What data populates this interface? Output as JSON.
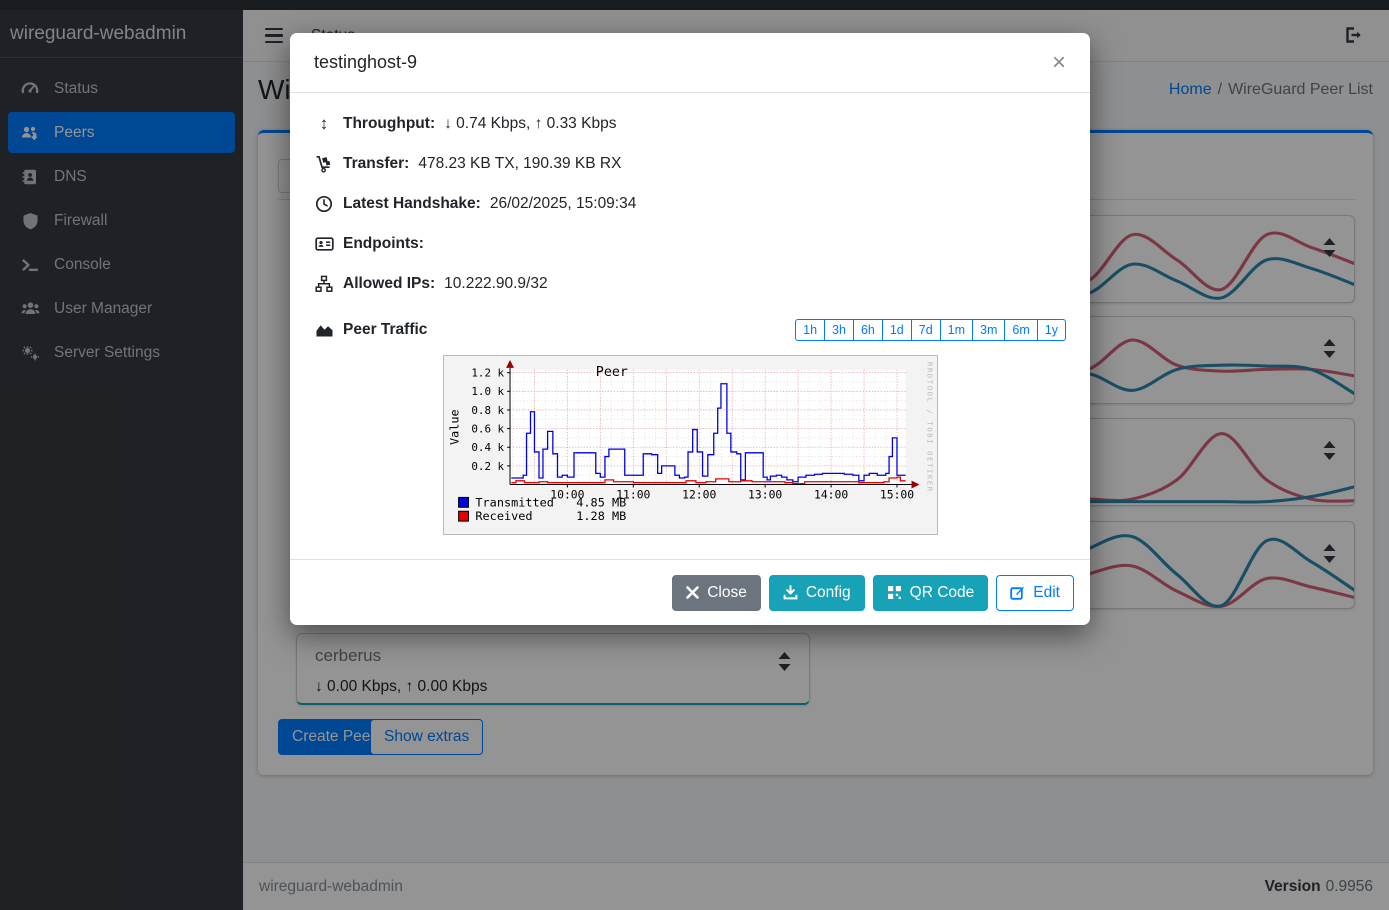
{
  "colors": {
    "primary": "#007bff",
    "teal": "#17a2b8",
    "gray": "#6c757d",
    "success_border": "#28a745",
    "spark_red": "#d25f75",
    "spark_blue": "#2d87ae"
  },
  "app": {
    "brand": "wireguard-webadmin"
  },
  "sidebar": {
    "items": [
      {
        "label": "Status",
        "icon": "gauge-icon",
        "active": false
      },
      {
        "label": "Peers",
        "icon": "users-gear-icon",
        "active": true
      },
      {
        "label": "DNS",
        "icon": "address-book-icon",
        "active": false
      },
      {
        "label": "Firewall",
        "icon": "shield-icon",
        "active": false
      },
      {
        "label": "Console",
        "icon": "terminal-icon",
        "active": false
      },
      {
        "label": "User Manager",
        "icon": "users-icon",
        "active": false
      },
      {
        "label": "Server Settings",
        "icon": "gears-icon",
        "active": false
      }
    ]
  },
  "navbar": {
    "menu_link": "Status"
  },
  "breadcrumb": {
    "home": "Home",
    "separator": "/",
    "current": "WireGuard Peer List"
  },
  "page": {
    "title": "WireGuard Peer List"
  },
  "peers": {
    "cerberus": {
      "name": "cerberus",
      "stats": "↓ 0.00 Kbps, ↑ 0.00 Kbps"
    },
    "create_button": "Create Peer",
    "extras_button": "Show extras"
  },
  "footer": {
    "version_label": "Version",
    "version": "0.9956"
  },
  "modal": {
    "title": "testinghost-9",
    "close_glyph": "×",
    "rows": [
      {
        "icon": "arrows-vertical-icon",
        "glyph": "↕",
        "label": "Throughput:",
        "value": "↓ 0.74 Kbps, ↑ 0.33 Kbps"
      },
      {
        "icon": "dolly-icon",
        "label": "Transfer:",
        "value": "478.23 KB TX, 190.39 KB RX"
      },
      {
        "icon": "clock-icon",
        "label": "Latest Handshake:",
        "value": "26/02/2025, 15:09:34"
      },
      {
        "icon": "address-card-icon",
        "label": "Endpoints:",
        "value": ""
      },
      {
        "icon": "sitemap-icon",
        "label": "Allowed IPs:",
        "value": "10.222.90.9/32"
      }
    ],
    "traffic": {
      "icon": "chart-area-icon",
      "label": "Peer Traffic",
      "ranges": [
        "1h",
        "3h",
        "6h",
        "1d",
        "7d",
        "1m",
        "3m",
        "6m",
        "1y"
      ]
    },
    "buttons": [
      {
        "label": "Close",
        "icon": "close-icon",
        "style": "gray"
      },
      {
        "label": "Config",
        "icon": "download-icon",
        "style": "teal"
      },
      {
        "label": "QR Code",
        "icon": "qrcode-icon",
        "style": "teal"
      },
      {
        "label": "Edit",
        "icon": "edit-icon",
        "style": "outline"
      }
    ]
  },
  "chart_data": {
    "type": "area-step",
    "title": "Peer",
    "ylabel": "Value",
    "x_ticks": [
      "10:00",
      "11:00",
      "12:00",
      "13:00",
      "14:00",
      "15:00"
    ],
    "x_tick_hours": [
      10,
      11,
      12,
      13,
      14,
      15
    ],
    "y_ticks": [
      "0.2 k",
      "0.4 k",
      "0.6 k",
      "0.8 k",
      "1.0 k",
      "1.2 k"
    ],
    "y_tick_values": [
      0.2,
      0.4,
      0.6,
      0.8,
      1.0,
      1.2
    ],
    "x_range_hours": [
      9.13,
      15.13
    ],
    "ylim": [
      0,
      1.23
    ],
    "grid": true,
    "legend_position": "bottom-left",
    "watermark": "RRDTOOL / TOBI OETIKER",
    "series": [
      {
        "name": "Transmitted",
        "color": "#0000e8",
        "total": "4.85 MB",
        "points": [
          [
            9.15,
            0.07
          ],
          [
            9.33,
            0.1
          ],
          [
            9.38,
            0.55
          ],
          [
            9.44,
            0.78
          ],
          [
            9.5,
            0.35
          ],
          [
            9.57,
            0.07
          ],
          [
            9.63,
            0.38
          ],
          [
            9.7,
            0.57
          ],
          [
            9.78,
            0.33
          ],
          [
            9.85,
            0.08
          ],
          [
            9.92,
            0.1
          ],
          [
            10.0,
            0.08
          ],
          [
            10.1,
            0.34
          ],
          [
            10.37,
            0.34
          ],
          [
            10.43,
            0.12
          ],
          [
            10.5,
            0.08
          ],
          [
            10.57,
            0.3
          ],
          [
            10.63,
            0.38
          ],
          [
            10.8,
            0.38
          ],
          [
            10.87,
            0.1
          ],
          [
            11.1,
            0.1
          ],
          [
            11.15,
            0.33
          ],
          [
            11.28,
            0.32
          ],
          [
            11.37,
            0.12
          ],
          [
            11.43,
            0.2
          ],
          [
            11.57,
            0.2
          ],
          [
            11.63,
            0.1
          ],
          [
            11.7,
            0.07
          ],
          [
            11.78,
            0.08
          ],
          [
            11.83,
            0.35
          ],
          [
            11.9,
            0.59
          ],
          [
            11.97,
            0.35
          ],
          [
            12.05,
            0.09
          ],
          [
            12.13,
            0.32
          ],
          [
            12.22,
            0.55
          ],
          [
            12.28,
            0.82
          ],
          [
            12.33,
            1.08
          ],
          [
            12.42,
            0.55
          ],
          [
            12.48,
            0.35
          ],
          [
            12.57,
            0.33
          ],
          [
            12.63,
            0.05
          ],
          [
            12.7,
            0.34
          ],
          [
            12.9,
            0.34
          ],
          [
            12.97,
            0.08
          ],
          [
            13.03,
            0.05
          ],
          [
            13.08,
            0.09
          ],
          [
            13.17,
            0.1
          ],
          [
            13.25,
            0.08
          ],
          [
            13.33,
            0.05
          ],
          [
            13.42,
            0.03
          ],
          [
            13.5,
            0.08
          ],
          [
            13.62,
            0.1
          ],
          [
            13.75,
            0.11
          ],
          [
            13.87,
            0.12
          ],
          [
            14.05,
            0.12
          ],
          [
            14.2,
            0.11
          ],
          [
            14.33,
            0.1
          ],
          [
            14.42,
            0.04
          ],
          [
            14.5,
            0.1
          ],
          [
            14.58,
            0.12
          ],
          [
            14.7,
            0.1
          ],
          [
            14.83,
            0.12
          ],
          [
            14.88,
            0.3
          ],
          [
            14.93,
            0.5
          ],
          [
            15.0,
            0.1
          ],
          [
            15.08,
            0.1
          ]
        ]
      },
      {
        "name": "Received",
        "color": "#e80000",
        "total": "1.28 MB",
        "points": [
          [
            9.15,
            0.02
          ],
          [
            9.22,
            0.04
          ],
          [
            9.35,
            0.02
          ],
          [
            9.57,
            0.03
          ],
          [
            9.7,
            0.02
          ],
          [
            10.5,
            0.02
          ],
          [
            10.57,
            0.05
          ],
          [
            10.7,
            0.03
          ],
          [
            11.0,
            0.02
          ],
          [
            11.8,
            0.04
          ],
          [
            11.95,
            0.02
          ],
          [
            12.1,
            0.03
          ],
          [
            12.25,
            0.06
          ],
          [
            12.45,
            0.03
          ],
          [
            12.63,
            0.04
          ],
          [
            12.8,
            0.03
          ],
          [
            13.3,
            0.02
          ],
          [
            13.42,
            0.01
          ],
          [
            13.6,
            0.03
          ],
          [
            14.0,
            0.03
          ],
          [
            14.42,
            0.02
          ],
          [
            14.8,
            0.03
          ],
          [
            14.88,
            0.07
          ],
          [
            15.0,
            0.08
          ],
          [
            15.05,
            0.04
          ],
          [
            15.08,
            0.04
          ]
        ]
      }
    ]
  },
  "sparklines": {
    "red": "#d25f75",
    "blue": "#2d87ae",
    "cards": [
      {
        "red": [
          0.5,
          0.4,
          0.45,
          0.55,
          0.5,
          0.6,
          0.75,
          0.2,
          0.5,
          0.85,
          0.2,
          0.35,
          0.55
        ],
        "blue": [
          0.75,
          0.8,
          0.75,
          0.7,
          0.75,
          0.8,
          0.9,
          0.55,
          0.75,
          0.95,
          0.5,
          0.6,
          0.8
        ]
      },
      {
        "red": [
          0.55,
          0.45,
          0.5,
          0.6,
          0.55,
          0.5,
          0.6,
          0.25,
          0.55,
          0.62,
          0.6,
          0.6,
          0.68
        ],
        "blue": [
          0.7,
          0.75,
          0.7,
          0.65,
          0.7,
          0.75,
          0.65,
          0.85,
          0.6,
          0.55,
          0.56,
          0.6,
          0.9
        ]
      },
      {
        "red": [
          0.93,
          0.93,
          0.93,
          0.93,
          0.93,
          0.93,
          0.93,
          0.93,
          0.7,
          0.15,
          0.7,
          0.93,
          0.95
        ],
        "blue": [
          0.96,
          0.96,
          0.96,
          0.96,
          0.96,
          0.96,
          0.96,
          0.96,
          0.96,
          0.96,
          0.96,
          0.9,
          0.78
        ]
      },
      {
        "red": [
          0.95,
          0.85,
          0.65,
          0.8,
          0.9,
          0.8,
          0.6,
          0.5,
          0.8,
          0.98,
          0.65,
          0.75,
          0.88
        ],
        "blue": [
          0.9,
          0.7,
          0.4,
          0.6,
          0.85,
          0.6,
          0.3,
          0.15,
          0.6,
          0.97,
          0.2,
          0.45,
          0.8
        ]
      }
    ]
  }
}
